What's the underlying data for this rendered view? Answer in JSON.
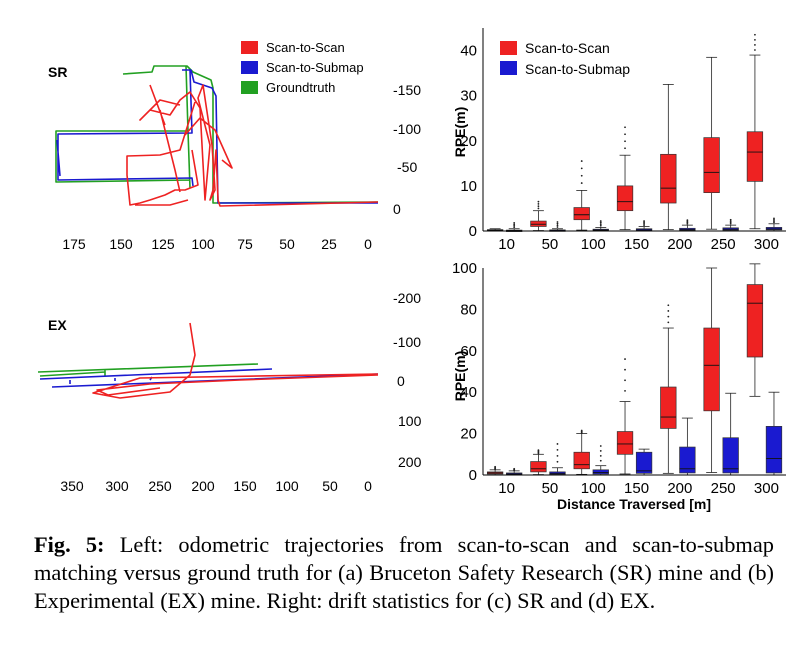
{
  "trajectory_plots": [
    {
      "panel_label": "SR",
      "x_ticks": [
        "175",
        "150",
        "125",
        "100",
        "75",
        "50",
        "25",
        "0"
      ],
      "y_ticks": [
        "-150",
        "-100",
        "-50",
        "0"
      ],
      "legend": [
        {
          "label": "Scan-to-Scan",
          "color": "#ee2222"
        },
        {
          "label": "Scan-to-Submap",
          "color": "#1a1ad0"
        },
        {
          "label": "Groundtruth",
          "color": "#22a022"
        }
      ]
    },
    {
      "panel_label": "EX",
      "x_ticks": [
        "350",
        "300",
        "250",
        "200",
        "150",
        "100",
        "50",
        "0"
      ],
      "y_ticks": [
        "-200",
        "-100",
        "0",
        "100",
        "200"
      ]
    }
  ],
  "chart_data": [
    {
      "type": "box",
      "title": "",
      "xlabel": "",
      "ylabel": "RPE(m)",
      "ylim": [
        0,
        45
      ],
      "yticks": [
        "0",
        "10",
        "20",
        "30",
        "40"
      ],
      "categories": [
        "10",
        "50",
        "100",
        "150",
        "200",
        "250",
        "300"
      ],
      "legend": [
        "Scan-to-Scan",
        "Scan-to-Submap"
      ],
      "series": [
        {
          "name": "Scan-to-Scan",
          "color": "#ee2222",
          "whisker_low": [
            0.0,
            0.1,
            0.2,
            0.3,
            0.3,
            0.4,
            0.5
          ],
          "q1": [
            0.1,
            1.0,
            2.5,
            4.5,
            6.2,
            8.5,
            11.0
          ],
          "median": [
            0.2,
            1.5,
            3.6,
            6.5,
            9.5,
            13.0,
            17.5
          ],
          "q3": [
            0.3,
            2.2,
            5.2,
            10.0,
            17.0,
            20.7,
            22.0
          ],
          "whisker_high": [
            0.5,
            4.5,
            9.0,
            16.8,
            32.5,
            38.5,
            39.0
          ],
          "outlier_max": [
            null,
            6.5,
            15.5,
            23.0,
            null,
            null,
            43.5
          ]
        },
        {
          "name": "Scan-to-Submap",
          "color": "#1a1ad0",
          "whisker_low": [
            0.0,
            0.0,
            0.0,
            0.0,
            0.0,
            0.0,
            0.0
          ],
          "q1": [
            0.05,
            0.05,
            0.1,
            0.1,
            0.15,
            0.2,
            0.25
          ],
          "median": [
            0.1,
            0.1,
            0.2,
            0.25,
            0.3,
            0.4,
            0.45
          ],
          "q3": [
            0.2,
            0.25,
            0.4,
            0.5,
            0.6,
            0.7,
            0.8
          ],
          "whisker_high": [
            0.5,
            0.5,
            0.8,
            1.0,
            1.3,
            1.3,
            1.6
          ],
          "outlier_max": [
            1.8,
            2.0,
            2.2,
            2.2,
            2.4,
            2.5,
            2.8
          ]
        }
      ]
    },
    {
      "type": "box",
      "title": "",
      "xlabel": "Distance Traversed [m]",
      "ylabel": "RPE(m)",
      "ylim": [
        0,
        100
      ],
      "yticks": [
        "0",
        "20",
        "40",
        "60",
        "80",
        "100"
      ],
      "categories": [
        "10",
        "50",
        "100",
        "150",
        "200",
        "250",
        "300"
      ],
      "series": [
        {
          "name": "Scan-to-Scan",
          "color": "#ee2222",
          "whisker_low": [
            0,
            0.2,
            0.3,
            0.5,
            0.8,
            1.2,
            38
          ],
          "q1": [
            0.5,
            1.5,
            3.0,
            10.0,
            22.5,
            31.0,
            57.0
          ],
          "median": [
            1.0,
            3.0,
            5.0,
            15.0,
            28.0,
            53.0,
            83.0
          ],
          "q3": [
            1.5,
            6.5,
            11.0,
            21.0,
            42.5,
            71.0,
            92.0
          ],
          "whisker_high": [
            2.5,
            10.0,
            20.0,
            35.5,
            71.0,
            100.0,
            102.0
          ],
          "outlier_max": [
            4.0,
            12.0,
            21.5,
            56.0,
            82.0,
            null,
            null
          ]
        },
        {
          "name": "Scan-to-Submap",
          "color": "#1a1ad0",
          "whisker_low": [
            0,
            0,
            0,
            0,
            0,
            0,
            0
          ],
          "q1": [
            0.2,
            0.3,
            0.5,
            0.8,
            1.0,
            1.0,
            1.0
          ],
          "median": [
            0.5,
            0.8,
            1.2,
            2.0,
            3.0,
            3.0,
            8.0
          ],
          "q3": [
            1.0,
            1.5,
            2.5,
            11.0,
            13.5,
            18.0,
            23.5
          ],
          "whisker_high": [
            2.0,
            3.5,
            4.5,
            12.5,
            27.5,
            39.5,
            40.0
          ],
          "outlier_max": [
            3.0,
            15.0,
            14.0,
            null,
            null,
            null,
            null
          ]
        }
      ]
    }
  ],
  "caption": {
    "fig_label": "Fig. 5:",
    "text": " Left: odometric trajectories from scan-to-scan and scan-to-submap matching versus ground truth for (a) Bruceton Safety Research (SR) mine and (b) Experimental (EX) mine. Right: drift statistics for (c) SR and (d) EX."
  }
}
